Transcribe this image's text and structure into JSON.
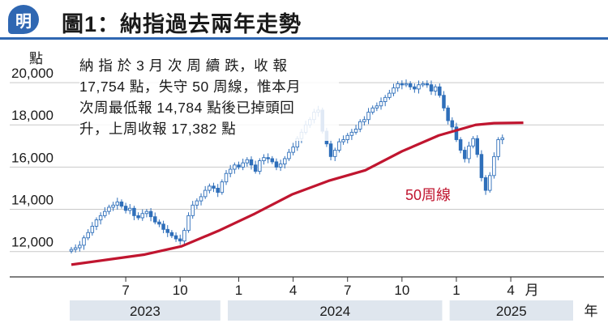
{
  "header": {
    "logo_text": "明",
    "title": "圖1：納指過去兩年走勢"
  },
  "annotation": [
    "納 指 於 3 月 次 周 續 跌，收 報",
    "17,754 點，失守 50 周線，惟本月",
    "次周最低報 14,784 點後已掉頭回",
    "升，上周收報 17,382 點"
  ],
  "chart_data": {
    "type": "candlestick-weekly",
    "y_unit_label": "點",
    "ylim": [
      10800,
      21000
    ],
    "y_ticks": [
      12000,
      14000,
      16000,
      18000,
      20000
    ],
    "y_tick_labels": [
      "12,000",
      "14,000",
      "16,000",
      "18,000",
      "20,000"
    ],
    "x_month_labels": [
      {
        "label": "7",
        "week": 13
      },
      {
        "label": "10",
        "week": 26
      },
      {
        "label": "1",
        "week": 40
      },
      {
        "label": "4",
        "week": 53
      },
      {
        "label": "7",
        "week": 66
      },
      {
        "label": "10",
        "week": 79
      },
      {
        "label": "1",
        "week": 92
      },
      {
        "label": "4",
        "week": 105
      }
    ],
    "x_suffix_month": "月",
    "years": [
      {
        "label": "2023",
        "from_week": 0,
        "to_week": 36
      },
      {
        "label": "2024",
        "from_week": 37,
        "to_week": 89
      },
      {
        "label": "2025",
        "from_week": 90,
        "to_week": 108
      }
    ],
    "x_suffix_year": "年",
    "weeks": 108,
    "close": [
      12100,
      12180,
      12300,
      12650,
      12900,
      13200,
      13500,
      13700,
      13900,
      14100,
      14200,
      14350,
      14150,
      13950,
      14050,
      13700,
      13600,
      13800,
      13900,
      13650,
      13400,
      13300,
      13050,
      12900,
      12750,
      12600,
      12500,
      13000,
      13700,
      14200,
      14400,
      14600,
      14900,
      15100,
      15000,
      14800,
      15300,
      15700,
      15900,
      16100,
      16000,
      16200,
      16350,
      16100,
      15800,
      16300,
      16450,
      16400,
      16250,
      16000,
      16150,
      16400,
      16700,
      16950,
      17350,
      17650,
      18000,
      18250,
      18600,
      18700,
      17700,
      17100,
      16500,
      16800,
      17200,
      17300,
      17500,
      17650,
      17800,
      18150,
      18250,
      18600,
      18800,
      18900,
      19100,
      19300,
      19500,
      19750,
      19950,
      19900,
      19950,
      19800,
      19700,
      19900,
      19950,
      19900,
      19600,
      19800,
      19400,
      18800,
      18200,
      17900,
      17300,
      16800,
      16400,
      17000,
      17350,
      16600,
      15500,
      14900,
      15600,
      16500,
      17300,
      17382
    ],
    "ma50": [
      {
        "week": 0,
        "value": 11380
      },
      {
        "week": 10,
        "value": 11620
      },
      {
        "week": 20,
        "value": 11860
      },
      {
        "week": 30,
        "value": 12250
      },
      {
        "week": 40,
        "value": 12980
      },
      {
        "week": 50,
        "value": 13800
      },
      {
        "week": 60,
        "value": 14700
      },
      {
        "week": 70,
        "value": 15350
      },
      {
        "week": 80,
        "value": 15850
      },
      {
        "week": 90,
        "value": 16750
      },
      {
        "week": 100,
        "value": 17500
      },
      {
        "week": 110,
        "value": 18000
      },
      {
        "week": 115,
        "value": 18080
      },
      {
        "week": 123,
        "value": 18100
      }
    ],
    "ma_label": "50周線",
    "colors": {
      "candle": "#2f6fba",
      "ma": "#c0152f",
      "grid": "#c9c9c9",
      "year_band": "#dfe6ee",
      "brand": "#2f67b2"
    }
  }
}
